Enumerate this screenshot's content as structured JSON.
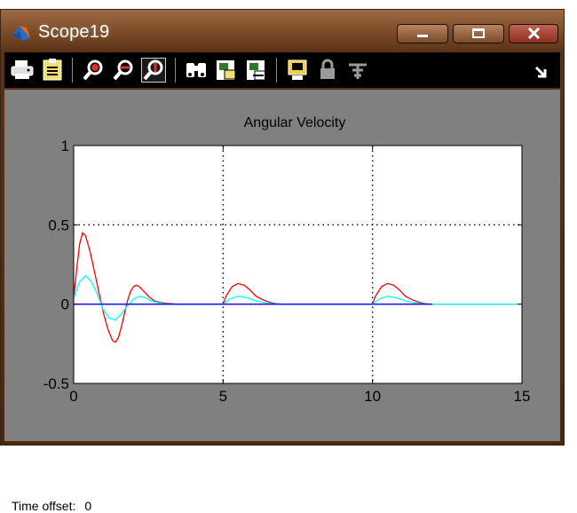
{
  "window": {
    "title": "Scope19",
    "minimize_label": "minimize",
    "maximize_label": "maximize",
    "close_label": "close"
  },
  "toolbar": {
    "buttons": [
      {
        "icon": "print-icon"
      },
      {
        "icon": "parameters-icon"
      },
      {
        "icon": "zoom-icon"
      },
      {
        "icon": "zoom-x-icon"
      },
      {
        "icon": "zoom-y-icon",
        "pressed": true
      },
      {
        "icon": "autoscale-binoculars-icon"
      },
      {
        "icon": "save-axes-icon"
      },
      {
        "icon": "restore-axes-icon"
      },
      {
        "icon": "floating-scope-icon"
      },
      {
        "icon": "lock-icon"
      },
      {
        "icon": "signal-selector-icon"
      },
      {
        "icon": "expand-arrow-icon"
      }
    ]
  },
  "status": {
    "label": "Time offset:",
    "value": "0"
  },
  "colors": {
    "plot_bg": "#ffffff",
    "window_bg": "#808080",
    "series_red": "#ff0000",
    "series_cyan": "#00ffff",
    "series_blue": "#0000ff"
  },
  "chart_data": {
    "type": "line",
    "title": "Angular Velocity",
    "xlabel": "",
    "ylabel": "",
    "xlim": [
      0,
      15
    ],
    "ylim": [
      -0.5,
      1
    ],
    "xticks": [
      0,
      5,
      10,
      15
    ],
    "yticks": [
      -0.5,
      0,
      0.5,
      1
    ],
    "xtick_labels": [
      "0",
      "5",
      "10",
      "15"
    ],
    "ytick_labels": [
      "-0.5",
      "0",
      "0.5",
      "1"
    ],
    "grid": true,
    "series": [
      {
        "color": "#ff0000",
        "x": [
          0,
          0.1,
          0.2,
          0.3,
          0.4,
          0.55,
          0.7,
          0.85,
          1.0,
          1.15,
          1.3,
          1.4,
          1.5,
          1.6,
          1.7,
          1.8,
          1.9,
          2.0,
          2.1,
          2.2,
          2.3,
          2.5,
          2.7,
          2.9,
          3.1,
          3.4,
          5.0,
          5.1,
          5.3,
          5.5,
          5.7,
          5.9,
          6.1,
          6.3,
          6.5,
          6.7,
          6.9,
          7.0,
          10.0,
          10.1,
          10.3,
          10.5,
          10.7,
          10.9,
          11.1,
          11.3,
          11.5,
          11.7,
          11.9,
          12.0,
          15.0
        ],
        "y": [
          0.04,
          0.22,
          0.38,
          0.45,
          0.43,
          0.33,
          0.2,
          0.07,
          -0.06,
          -0.16,
          -0.23,
          -0.24,
          -0.21,
          -0.14,
          -0.06,
          0.02,
          0.08,
          0.11,
          0.12,
          0.11,
          0.09,
          0.05,
          0.02,
          0.01,
          0.005,
          0.0,
          0.0,
          0.05,
          0.11,
          0.13,
          0.12,
          0.09,
          0.05,
          0.03,
          0.015,
          0.005,
          0.0,
          0.0,
          0.0,
          0.05,
          0.11,
          0.13,
          0.12,
          0.09,
          0.05,
          0.03,
          0.015,
          0.005,
          0.0,
          0.0,
          0.0
        ]
      },
      {
        "color": "#00ffff",
        "x": [
          0,
          0.2,
          0.4,
          0.6,
          0.8,
          1.0,
          1.2,
          1.4,
          1.6,
          1.8,
          2.0,
          2.2,
          2.4,
          2.6,
          2.9,
          3.2,
          5.0,
          5.2,
          5.5,
          5.8,
          6.1,
          6.5,
          6.9,
          10.0,
          10.2,
          10.5,
          10.8,
          11.1,
          11.5,
          11.9,
          15.0
        ],
        "y": [
          0.04,
          0.14,
          0.18,
          0.14,
          0.06,
          -0.04,
          -0.09,
          -0.1,
          -0.06,
          -0.01,
          0.03,
          0.05,
          0.04,
          0.02,
          0.005,
          0.0,
          0.0,
          0.03,
          0.05,
          0.04,
          0.02,
          0.005,
          0.0,
          0.0,
          0.03,
          0.05,
          0.04,
          0.02,
          0.005,
          0.0,
          0.0
        ]
      },
      {
        "color": "#0000ff",
        "x": [
          0,
          3.4,
          5.0,
          7.0,
          10.0,
          12.0
        ],
        "y": [
          0,
          0,
          0,
          0,
          0,
          0
        ]
      }
    ]
  }
}
